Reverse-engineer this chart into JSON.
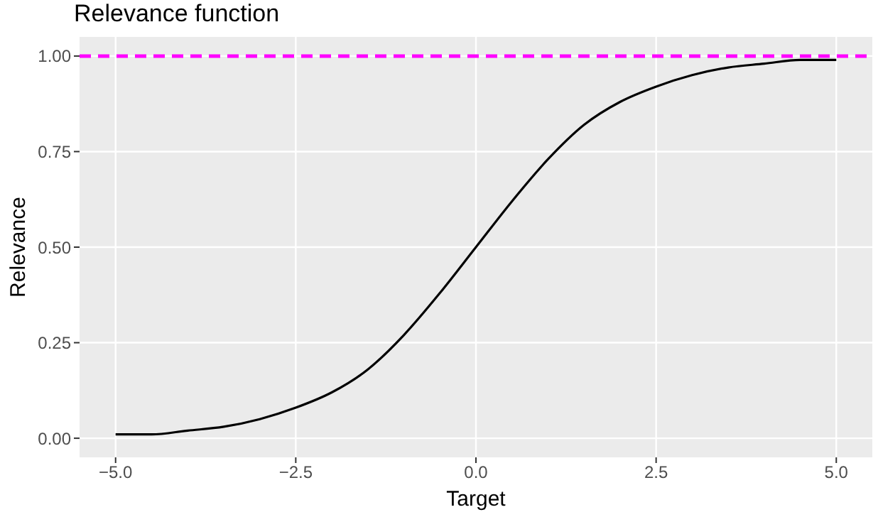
{
  "chart_data": {
    "type": "line",
    "title": "Relevance function",
    "xlabel": "Target",
    "ylabel": "Relevance",
    "x": [
      -5,
      -4.5,
      -4,
      -3.5,
      -3,
      -2.5,
      -2,
      -1.5,
      -1,
      -0.5,
      0,
      0.5,
      1,
      1.5,
      2,
      2.5,
      3,
      3.5,
      4,
      4.5,
      5
    ],
    "series": [
      {
        "color": "#000000",
        "values": [
          0.01,
          0.01,
          0.02,
          0.03,
          0.05,
          0.08,
          0.12,
          0.18,
          0.27,
          0.38,
          0.5,
          0.62,
          0.73,
          0.82,
          0.88,
          0.92,
          0.95,
          0.97,
          0.98,
          0.99,
          0.99
        ]
      }
    ],
    "xlim": [
      -5.5,
      5.5
    ],
    "ylim": [
      -0.05,
      1.05
    ],
    "xticks": [
      {
        "value": -5,
        "label": "−5.0"
      },
      {
        "value": -2.5,
        "label": "−2.5"
      },
      {
        "value": 0,
        "label": "0.0"
      },
      {
        "value": 2.5,
        "label": "2.5"
      },
      {
        "value": 5,
        "label": "5.0"
      }
    ],
    "yticks": [
      {
        "value": 0,
        "label": "0.00"
      },
      {
        "value": 0.25,
        "label": "0.25"
      },
      {
        "value": 0.5,
        "label": "0.50"
      },
      {
        "value": 0.75,
        "label": "0.75"
      },
      {
        "value": 1,
        "label": "1.00"
      }
    ],
    "ref_lines": [
      {
        "axis": "y",
        "value": 1,
        "color": "#ff00ff",
        "line_style": "dashed"
      }
    ],
    "grid": true,
    "marker": "none",
    "line_style": "solid"
  }
}
